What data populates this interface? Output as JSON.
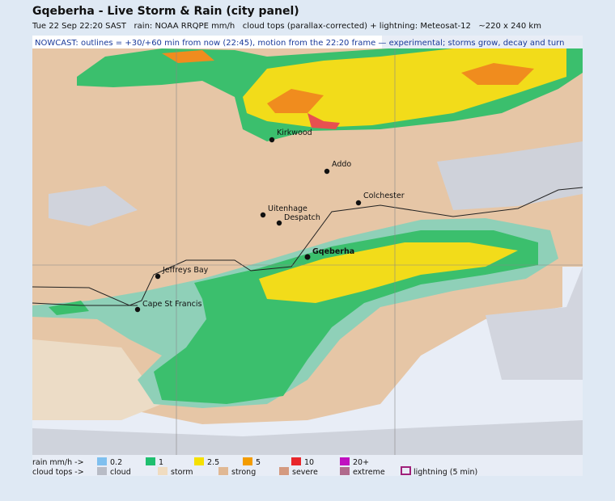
{
  "header": {
    "title": "Gqeberha - Live Storm & Rain (city panel)",
    "subtitle": "Tue 22 Sep 22:20 SAST   rain: NOAA RRQPE mm/h   cloud tops (parallax-corrected) + lightning: Meteosat-12   ~220 x 240 km"
  },
  "banner": "NOWCAST: outlines = +30/+60 min from now (22:45), motion from the 22:20 frame — experimental; storms grow, decay and turn",
  "places": [
    "Kirkwood",
    "Addo",
    "Colchester",
    "Uitenhage",
    "Despatch",
    "Gqeberha",
    "Jeffreys Bay",
    "Cape St Francis"
  ],
  "legend": {
    "rain_label": "rain mm/h ->",
    "rain": [
      "0.2",
      "1",
      "2.5",
      "5",
      "10",
      "20+"
    ],
    "cloud_label": "cloud tops ->",
    "cloud": [
      "cloud",
      "storm",
      "strong",
      "severe",
      "extreme"
    ],
    "lightning": "lightning (5 min)"
  }
}
